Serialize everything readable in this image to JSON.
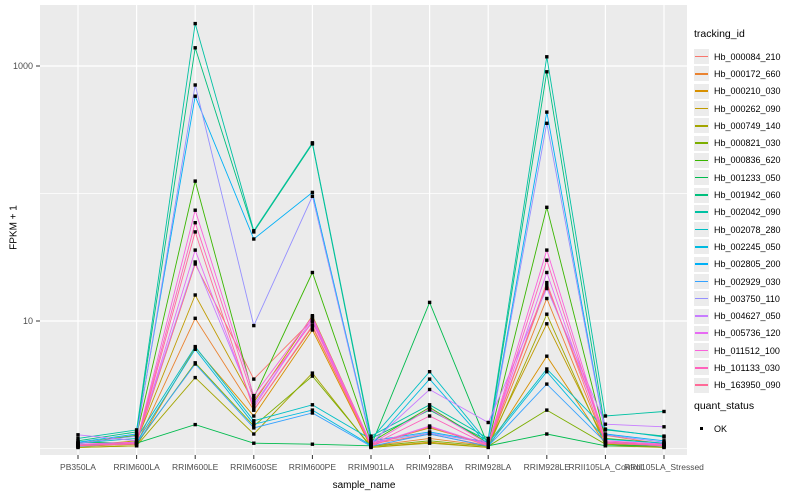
{
  "figure": {
    "background": "#FFFFFF",
    "panel_background": "#EBEBEB",
    "grid_color": "#FFFFFF",
    "point_color": "#000000",
    "tick_color": "#333333",
    "tick_label_color": "#4D4D4D"
  },
  "axes": {
    "y_title": "FPKM + 1",
    "x_title": "sample_name",
    "y_ticks": [
      {
        "label": "10",
        "value": 10
      },
      {
        "label": "1000",
        "value": 1000
      }
    ],
    "y_minor_values": [
      1,
      100
    ]
  },
  "legend": {
    "tracking_title": "tracking_id",
    "quant_title": "quant_status",
    "quant_items": [
      {
        "label": "OK"
      }
    ]
  },
  "chart_data": {
    "type": "line",
    "title": "",
    "xlabel": "sample_name",
    "ylabel": "FPKM + 1",
    "y_scale": "log10",
    "ylim": [
      0.9,
      3000
    ],
    "grid": true,
    "legend_position": "right",
    "point_marker": "black-square (quant_status = OK on every point)",
    "categories": [
      "PB350LA",
      "RRIM600LA",
      "RRIM600LE",
      "RRIM600SE",
      "RRIM600PE",
      "RRIM901LA",
      "RRIM928BA",
      "RRIM928LA",
      "RRIM928LE",
      "RRII105LA_Control",
      "RRII105LA_Stressed"
    ],
    "series": [
      {
        "name": "Hb_000084_210",
        "color": "#F8766D",
        "values": [
          1.08,
          1.1,
          28,
          3.5,
          10.2,
          1.08,
          1.3,
          1.05,
          19,
          1.27,
          1.08
        ]
      },
      {
        "name": "Hb_000172_660",
        "color": "#EA8331",
        "values": [
          1.05,
          1.08,
          10.5,
          2.0,
          9.0,
          1.05,
          1.2,
          1.05,
          15,
          1.1,
          1.05
        ]
      },
      {
        "name": "Hb_000210_030",
        "color": "#D89000",
        "values": [
          1.02,
          1.05,
          6.2,
          1.8,
          8.5,
          1.02,
          1.12,
          1.02,
          5.3,
          1.08,
          1.02
        ]
      },
      {
        "name": "Hb_000262_090",
        "color": "#C09B00",
        "values": [
          1.05,
          1.15,
          16,
          2.3,
          11.0,
          1.08,
          1.45,
          1.08,
          9.5,
          1.12,
          1.08
        ]
      },
      {
        "name": "Hb_000749_140",
        "color": "#A3A500",
        "values": [
          1.02,
          1.05,
          3.6,
          1.3,
          3.9,
          1.02,
          1.1,
          1.02,
          11.3,
          1.05,
          1.02
        ]
      },
      {
        "name": "Hb_000821_030",
        "color": "#7CAE00",
        "values": [
          1.04,
          1.08,
          4.7,
          1.5,
          3.7,
          1.04,
          1.15,
          1.04,
          2.0,
          1.08,
          1.04
        ]
      },
      {
        "name": "Hb_000836_620",
        "color": "#39B600",
        "values": [
          1.1,
          1.27,
          125,
          2.5,
          24,
          1.12,
          2.1,
          1.1,
          78,
          1.2,
          1.1
        ]
      },
      {
        "name": "Hb_001233_050",
        "color": "#00BB4E",
        "values": [
          1.12,
          1.1,
          1.54,
          1.1,
          1.08,
          1.05,
          14.0,
          1.05,
          1.3,
          1.05,
          1.05
        ]
      },
      {
        "name": "Hb_001942_060",
        "color": "#00BF7D",
        "values": [
          1.15,
          1.35,
          1390,
          50,
          245,
          1.2,
          2.0,
          1.15,
          900,
          1.4,
          1.25
        ]
      },
      {
        "name": "Hb_002042_090",
        "color": "#00C1A3",
        "values": [
          1.2,
          1.4,
          2150,
          51,
          250,
          1.25,
          2.2,
          1.2,
          1180,
          1.8,
          1.95
        ]
      },
      {
        "name": "Hb_002078_280",
        "color": "#00BFC4",
        "values": [
          1.1,
          1.2,
          6.3,
          1.65,
          2.2,
          1.18,
          4.0,
          1.1,
          4.2,
          1.42,
          1.23
        ]
      },
      {
        "name": "Hb_002245_050",
        "color": "#00BAE0",
        "values": [
          1.06,
          1.12,
          6.0,
          1.55,
          2.0,
          1.06,
          3.5,
          1.06,
          4.0,
          1.18,
          1.1
        ]
      },
      {
        "name": "Hb_002805_200",
        "color": "#00B0F6",
        "values": [
          1.12,
          1.3,
          580,
          44,
          102,
          1.15,
          1.35,
          1.12,
          435,
          1.3,
          1.15
        ]
      },
      {
        "name": "Hb_002929_030",
        "color": "#35A2FF",
        "values": [
          1.04,
          1.1,
          4.6,
          1.45,
          1.9,
          1.04,
          1.3,
          1.04,
          3.2,
          1.12,
          1.04
        ]
      },
      {
        "name": "Hb_003750_110",
        "color": "#9590FF",
        "values": [
          1.1,
          1.25,
          710,
          9.2,
          95,
          1.12,
          1.32,
          1.1,
          355,
          1.28,
          1.12
        ]
      },
      {
        "name": "Hb_004627_050",
        "color": "#C77CFF",
        "values": [
          1.28,
          1.15,
          29,
          2.2,
          10.0,
          1.1,
          2.9,
          1.6,
          18,
          1.55,
          1.48
        ]
      },
      {
        "name": "Hb_005736_120",
        "color": "#E76BF3",
        "values": [
          1.05,
          1.1,
          36,
          2.1,
          10.5,
          1.07,
          1.5,
          1.07,
          24,
          1.15,
          1.07
        ]
      },
      {
        "name": "Hb_011512_100",
        "color": "#FA62DB",
        "values": [
          1.08,
          1.12,
          74,
          2.6,
          10.8,
          1.08,
          2.05,
          1.08,
          36,
          1.15,
          1.08
        ]
      },
      {
        "name": "Hb_101133_030",
        "color": "#FF62BC",
        "values": [
          1.06,
          1.1,
          59,
          2.4,
          9.8,
          1.06,
          1.8,
          1.06,
          30,
          1.12,
          1.06
        ]
      },
      {
        "name": "Hb_163950_090",
        "color": "#FF6A98",
        "values": [
          1.05,
          1.08,
          50,
          2.0,
          9.2,
          1.05,
          1.48,
          1.05,
          20,
          1.1,
          1.05
        ]
      }
    ]
  }
}
